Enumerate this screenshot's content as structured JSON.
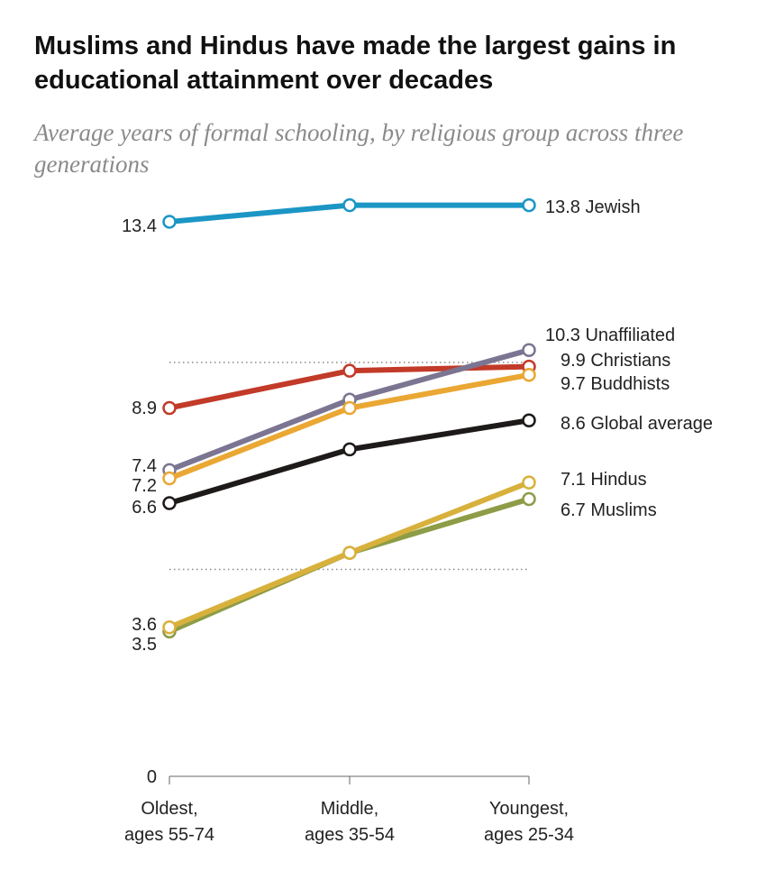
{
  "chart_data": {
    "type": "line",
    "title": "Muslims and Hindus have made the largest gains in educational attainment over decades",
    "subtitle": "Average years of formal schooling, by religious group across three generations",
    "categories": [
      "Oldest,\nages 55-74",
      "Middle,\nages 35-54",
      "Youngest,\nages 25-34"
    ],
    "category_lines": [
      [
        "Oldest,",
        "ages 55-74"
      ],
      [
        "Middle,",
        "ages 35-54"
      ],
      [
        "Youngest,",
        "ages 25-34"
      ]
    ],
    "ylim": [
      0,
      14
    ],
    "y_ticks": [
      "0"
    ],
    "reference_lines": [
      5,
      10
    ],
    "series": [
      {
        "name": "Jewish",
        "values": [
          13.4,
          13.8,
          13.8
        ],
        "color": "#1b96c5",
        "start_label": "13.4",
        "end_label": "13.8 Jewish"
      },
      {
        "name": "Unaffiliated",
        "values": [
          7.4,
          9.1,
          10.3
        ],
        "color": "#7b7592",
        "start_label": "7.4",
        "end_label": "10.3 Unaffiliated"
      },
      {
        "name": "Christians",
        "values": [
          8.9,
          9.8,
          9.9
        ],
        "color": "#c23a28",
        "start_label": "8.9",
        "end_label": "9.9 Christians"
      },
      {
        "name": "Buddhists",
        "values": [
          7.2,
          8.9,
          9.7
        ],
        "color": "#eaa733",
        "start_label": "7.2",
        "end_label": "9.7 Buddhists"
      },
      {
        "name": "Global average",
        "values": [
          6.6,
          7.9,
          8.6
        ],
        "color": "#1e1a1a",
        "start_label": "6.6",
        "end_label": "8.6 Global average"
      },
      {
        "name": "Muslims",
        "values": [
          3.5,
          5.4,
          6.7
        ],
        "color": "#8d9c46",
        "start_label": "3.5",
        "end_label": "6.7 Muslims"
      },
      {
        "name": "Hindus",
        "values": [
          3.6,
          5.4,
          7.1
        ],
        "color": "#d8b13c",
        "start_label": "3.6",
        "end_label": "7.1 Hindus"
      }
    ]
  }
}
